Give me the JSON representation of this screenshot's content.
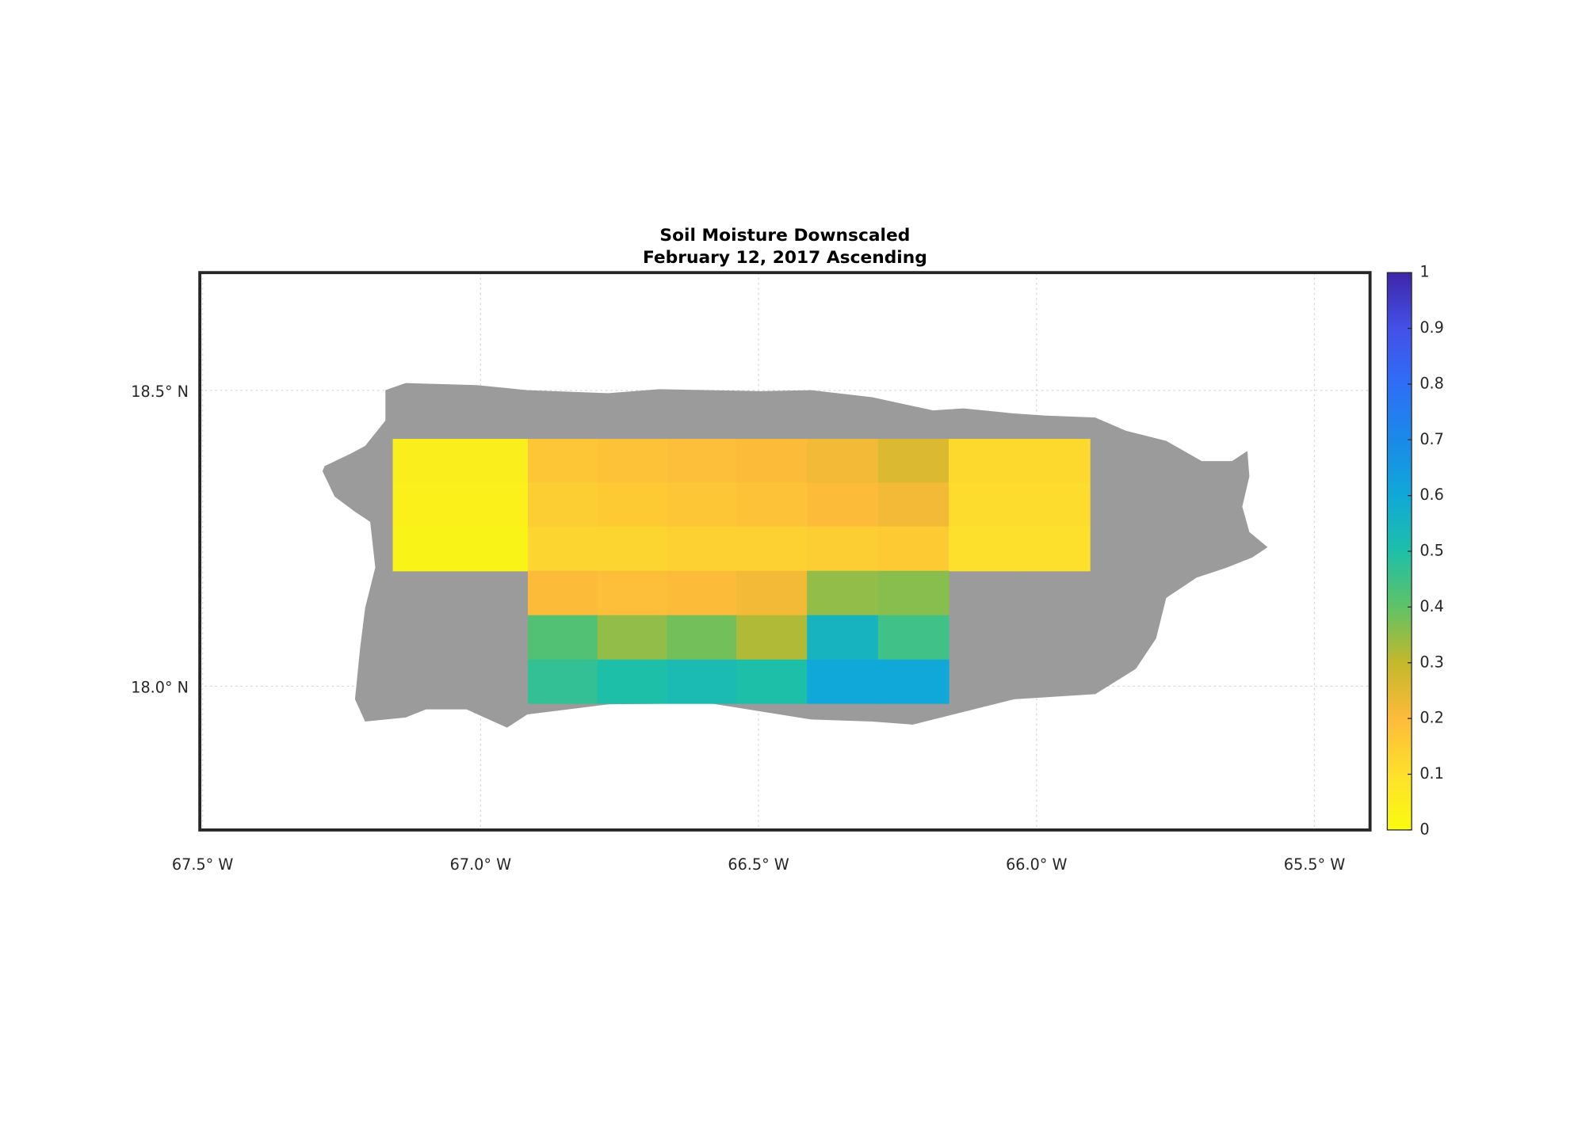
{
  "chart_data": {
    "type": "heatmap",
    "title": "Soil Moisture Downscaled",
    "subtitle": "February 12, 2017 Ascending",
    "xlim": [
      -67.505,
      -65.4
    ],
    "ylim": [
      17.757,
      18.699
    ],
    "xticks": [
      {
        "value": -67.5,
        "label": "67.5° W"
      },
      {
        "value": -67.0,
        "label": "67.0° W"
      },
      {
        "value": -66.5,
        "label": "66.5° W"
      },
      {
        "value": -66.0,
        "label": "66.0° W"
      },
      {
        "value": -65.5,
        "label": "65.5° W"
      }
    ],
    "yticks": [
      {
        "value": 18.0,
        "label": "18.0° N"
      },
      {
        "value": 18.5,
        "label": "18.5° N"
      }
    ],
    "grid": true,
    "lon_edges": [
      -67.158,
      -67.037,
      -66.915,
      -66.79,
      -66.665,
      -66.54,
      -66.413,
      -66.285,
      -66.158,
      -66.03,
      -65.904
    ],
    "lat_edges": [
      18.418,
      18.344,
      18.27,
      18.195,
      18.12,
      18.045,
      17.971
    ],
    "values": [
      [
        0.05,
        0.05,
        0.17,
        0.18,
        0.19,
        0.2,
        0.22,
        0.26,
        0.12,
        0.12
      ],
      [
        0.04,
        0.04,
        0.15,
        0.16,
        0.17,
        0.18,
        0.2,
        0.22,
        0.11,
        0.11
      ],
      [
        0.03,
        0.03,
        0.13,
        0.13,
        0.14,
        0.14,
        0.15,
        0.16,
        0.1,
        0.1
      ],
      [
        null,
        null,
        0.2,
        0.19,
        0.2,
        0.22,
        0.35,
        0.36,
        null,
        null
      ],
      [
        null,
        null,
        0.42,
        0.35,
        0.38,
        0.32,
        0.55,
        0.45,
        null,
        null
      ],
      [
        null,
        null,
        0.47,
        0.5,
        0.52,
        0.5,
        0.6,
        0.6,
        null,
        null
      ]
    ],
    "clim": [
      0,
      1
    ],
    "cticks": [
      0,
      0.1,
      0.2,
      0.3,
      0.4,
      0.5,
      0.6,
      0.7,
      0.8,
      0.9,
      1
    ],
    "colormap": [
      "#f9fb0e",
      "#fde02b",
      "#fdbb3a",
      "#c4b82a",
      "#5fc266",
      "#1ebfa8",
      "#10a8d8",
      "#1a8ae8",
      "#2e6ef6",
      "#4450e8",
      "#3e26a8"
    ]
  }
}
